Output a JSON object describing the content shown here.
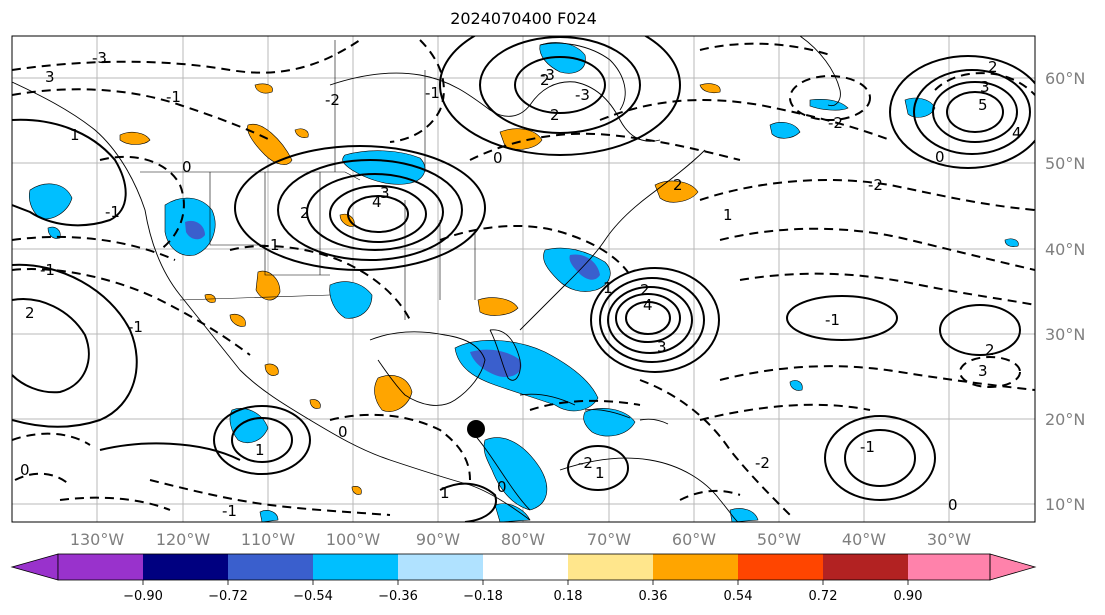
{
  "title": "2024070400 F024",
  "map": {
    "lon_labels": [
      "130°W",
      "120°W",
      "110°W",
      "100°W",
      "90°W",
      "80°W",
      "70°W",
      "60°W",
      "50°W",
      "40°W",
      "30°W"
    ],
    "lat_labels": [
      "60°N",
      "50°N",
      "40°N",
      "30°N",
      "20°N",
      "10°N"
    ],
    "contour_labels": [
      "-3",
      "3",
      "-1",
      "0",
      "-1",
      "1",
      "3",
      "4",
      "2",
      "2",
      "-1",
      "-2",
      "0",
      "-3",
      "2",
      "3",
      "5",
      "4",
      "-2",
      "1",
      "0",
      "2",
      "4",
      "1",
      "3",
      "-1",
      "2",
      "3",
      "1",
      "2",
      "-1",
      "0",
      "-2",
      "1",
      "0",
      "-1",
      "1",
      "0",
      "-2",
      "1",
      "0",
      "-1",
      "-2",
      "-1",
      "2",
      "-3",
      "2"
    ],
    "marker": {
      "type": "black-dot"
    },
    "colors": {
      "land_outline": "#000000",
      "grid": "#b0b0b0",
      "contour": "#000000"
    }
  },
  "colorbar": {
    "tick_labels": [
      "−0.90",
      "−0.72",
      "−0.54",
      "−0.36",
      "−0.18",
      "0.18",
      "0.36",
      "0.54",
      "0.72",
      "0.90"
    ],
    "colors": [
      "#9932cc",
      "#000080",
      "#3a5fcd",
      "#00bfff",
      "#b0e2ff",
      "#ffffff",
      "#ffe68c",
      "#ffa500",
      "#ff4500",
      "#b22222",
      "#ff82ab"
    ]
  }
}
